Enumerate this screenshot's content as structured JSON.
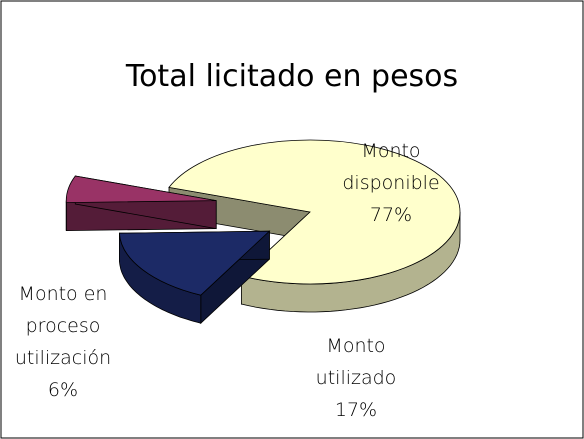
{
  "chart_data": {
    "type": "pie3d",
    "title": "Total licitado en pesos",
    "categories": [
      "Monto disponible",
      "Monto utilizado",
      "Monto en proceso utilización"
    ],
    "values": [
      77,
      17,
      6
    ],
    "value_labels": [
      "77%",
      "17%",
      "6%"
    ],
    "colors": [
      "#ffffcc",
      "#1c2a66",
      "#993366"
    ]
  }
}
